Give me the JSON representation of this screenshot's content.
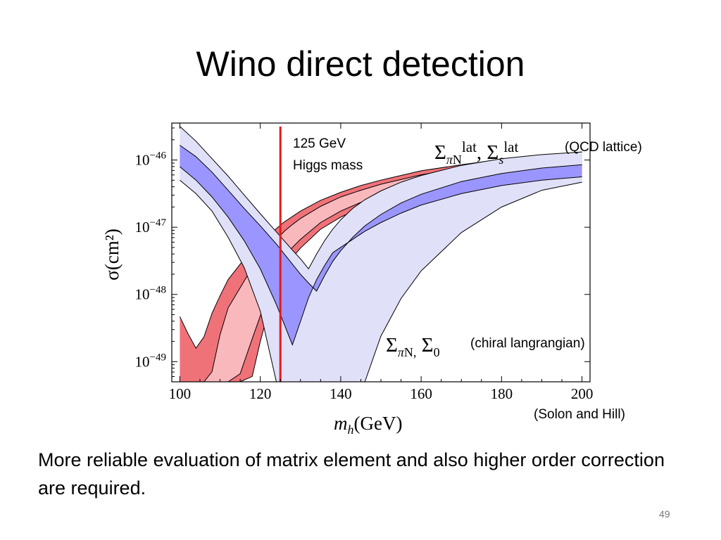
{
  "slide": {
    "title": "Wino direct detection",
    "body": "More reliable evaluation of matrix element and also higher order correction are required.",
    "page_number": "49"
  },
  "annotations": {
    "higgs_line_1": "125 GeV",
    "higgs_line_2": "Higgs mass",
    "lattice_label": "(QCD lattice)",
    "chiral_label": "(chiral langrangian)",
    "credit": "(Solon and Hill)"
  },
  "chart_data": {
    "type": "area",
    "xlabel_main": "m",
    "xlabel_sub": "h",
    "xlabel_unit": "(GeV)",
    "ylabel": "σ(cm²)",
    "x_ticks": [
      "100",
      "120",
      "140",
      "160",
      "180",
      "200"
    ],
    "x_tick_values": [
      100,
      120,
      140,
      160,
      180,
      200
    ],
    "y_tick_labels": [
      {
        "base": "10",
        "exp": "−46",
        "value": -46
      },
      {
        "base": "10",
        "exp": "−47",
        "value": -47
      },
      {
        "base": "10",
        "exp": "−48",
        "value": -48
      },
      {
        "base": "10",
        "exp": "−49",
        "value": -49
      }
    ],
    "xlim": [
      98,
      202
    ],
    "y_scale": "log10",
    "ylim_log10": [
      -49.3,
      -45.45
    ],
    "grid": false,
    "vline": {
      "x": 125,
      "color": "#e41a1c"
    },
    "series": [
      {
        "name": "Σ_πN^lat, Σ_s^lat",
        "color_outer": "#f07279",
        "color_inner": "#f9b8bc",
        "x": [
          100,
          102,
          104,
          106,
          108,
          110,
          112,
          115,
          118,
          120,
          122,
          124,
          125,
          126,
          128,
          130,
          135,
          140,
          145,
          150,
          160,
          170,
          180,
          190,
          200
        ],
        "outer_lo": [
          -49.3,
          -49.3,
          -49.3,
          -49.3,
          -49.3,
          -49.3,
          -49.3,
          -49.3,
          -49.22,
          -48.7,
          -48.25,
          -47.9,
          -47.78,
          -47.65,
          -47.45,
          -47.31,
          -47.03,
          -46.85,
          -46.71,
          -46.59,
          -46.42,
          -46.3,
          -46.2,
          -46.13,
          -46.07
        ],
        "inner_lo": [
          -49.3,
          -49.3,
          -49.3,
          -49.3,
          -49.3,
          -49.3,
          -49.3,
          -49.18,
          -48.66,
          -48.32,
          -47.98,
          -47.7,
          -47.56,
          -47.45,
          -47.3,
          -47.18,
          -46.93,
          -46.76,
          -46.63,
          -46.52,
          -46.36,
          -46.25,
          -46.15,
          -46.08,
          -46.02
        ],
        "inner_hi": [
          -49.3,
          -49.3,
          -49.3,
          -49.3,
          -49.15,
          -48.6,
          -48.2,
          -47.9,
          -47.6,
          -47.45,
          -47.31,
          -47.18,
          -47.12,
          -47.06,
          -46.96,
          -46.87,
          -46.69,
          -46.55,
          -46.45,
          -46.36,
          -46.22,
          -46.12,
          -46.04,
          -45.98,
          -45.93
        ],
        "outer_hi": [
          -48.33,
          -48.58,
          -48.8,
          -48.63,
          -48.28,
          -48.02,
          -47.78,
          -47.55,
          -47.34,
          -47.23,
          -47.12,
          -47.02,
          -46.97,
          -46.92,
          -46.84,
          -46.76,
          -46.6,
          -46.48,
          -46.38,
          -46.3,
          -46.16,
          -46.07,
          -45.99,
          -45.93,
          -45.88
        ]
      },
      {
        "name": "Σ_πN, Σ_0",
        "color_outer": "#e0e0f8",
        "color_inner": "#9b96ff",
        "x": [
          100,
          104,
          108,
          112,
          116,
          120,
          124,
          128,
          130,
          132,
          134,
          136,
          138,
          140,
          143,
          146,
          150,
          155,
          160,
          170,
          180,
          190,
          200
        ],
        "outer_lo": [
          -46.3,
          -46.5,
          -46.76,
          -47.15,
          -47.6,
          -48.25,
          -49.3,
          -49.3,
          -49.3,
          -49.3,
          -49.3,
          -49.3,
          -49.3,
          -49.3,
          -49.3,
          -49.3,
          -48.62,
          -48.06,
          -47.65,
          -47.08,
          -46.7,
          -46.45,
          -46.33
        ],
        "inner_lo": [
          -46.1,
          -46.3,
          -46.55,
          -46.85,
          -47.2,
          -47.62,
          -48.15,
          -48.75,
          -48.4,
          -48.05,
          -47.78,
          -47.57,
          -47.38,
          -47.3,
          -47.18,
          -47.06,
          -46.93,
          -46.79,
          -46.67,
          -46.5,
          -46.38,
          -46.3,
          -46.25
        ],
        "inner_hi": [
          -45.78,
          -45.95,
          -46.18,
          -46.45,
          -46.72,
          -46.98,
          -47.25,
          -47.55,
          -47.7,
          -47.83,
          -47.95,
          -47.72,
          -47.51,
          -47.35,
          -47.15,
          -46.98,
          -46.81,
          -46.64,
          -46.51,
          -46.32,
          -46.2,
          -46.12,
          -46.07
        ],
        "outer_hi": [
          -45.5,
          -45.72,
          -45.98,
          -46.24,
          -46.52,
          -46.8,
          -47.07,
          -47.34,
          -47.47,
          -47.62,
          -47.4,
          -47.2,
          -47.03,
          -46.89,
          -46.72,
          -46.59,
          -46.46,
          -46.33,
          -46.23,
          -46.08,
          -45.98,
          -45.92,
          -45.88
        ]
      }
    ]
  }
}
